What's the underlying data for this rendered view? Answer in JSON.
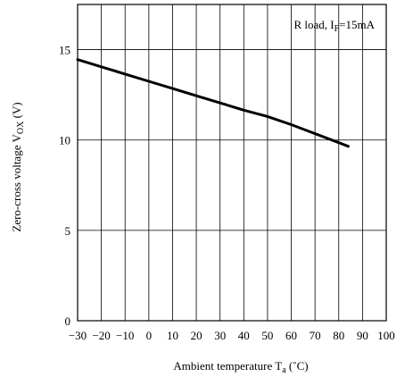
{
  "chart_data": {
    "type": "line",
    "xlabel": {
      "main": "Ambient temperature T",
      "sub": "a",
      "suffix": " (˚C)"
    },
    "ylabel": {
      "main": "Zero-cross voltage V",
      "sub": "OX",
      "suffix": " (V)"
    },
    "annotation": {
      "main": "R load, I",
      "sub": "F",
      "suffix": "=15mA"
    },
    "xlim": [
      -30,
      100
    ],
    "ylim": [
      0,
      17.5
    ],
    "x_ticks": [
      -30,
      -20,
      -10,
      0,
      10,
      20,
      30,
      40,
      50,
      60,
      70,
      80,
      90,
      100
    ],
    "y_ticks": [
      0,
      5,
      10,
      15
    ],
    "grid": true,
    "series": [
      {
        "x": [
          -30,
          -20,
          -10,
          0,
          10,
          20,
          30,
          40,
          50,
          60,
          70,
          80,
          84
        ],
        "y": [
          14.45,
          14.05,
          13.65,
          13.25,
          12.85,
          12.45,
          12.05,
          11.65,
          11.3,
          10.85,
          10.35,
          9.85,
          9.65
        ]
      }
    ]
  }
}
